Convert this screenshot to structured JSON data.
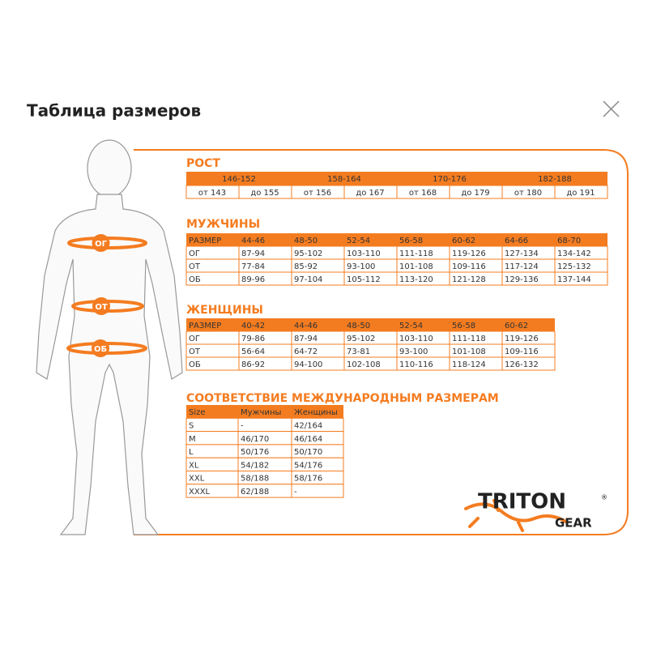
{
  "header": {
    "title": "Таблица размеров"
  },
  "figure": {
    "labels": [
      "ОГ",
      "ОТ",
      "ОБ"
    ]
  },
  "height_table": {
    "title": "РОСТ",
    "groups": [
      "146-152",
      "158-164",
      "170-176",
      "182-188"
    ],
    "cells": [
      "от 143",
      "до 155",
      "от 156",
      "до 167",
      "от 168",
      "до 179",
      "от 180",
      "до 191"
    ]
  },
  "men_table": {
    "title": "МУЖЧИНЫ",
    "header": [
      "РАЗМЕР",
      "44-46",
      "48-50",
      "52-54",
      "56-58",
      "60-62",
      "64-66",
      "68-70"
    ],
    "rows": [
      [
        "ОГ",
        "87-94",
        "95-102",
        "103-110",
        "111-118",
        "119-126",
        "127-134",
        "134-142"
      ],
      [
        "ОТ",
        "77-84",
        "85-92",
        "93-100",
        "101-108",
        "109-116",
        "117-124",
        "125-132"
      ],
      [
        "ОБ",
        "89-96",
        "97-104",
        "105-112",
        "113-120",
        "121-128",
        "129-136",
        "137-144"
      ]
    ]
  },
  "women_table": {
    "title": "ЖЕНЩИНЫ",
    "header": [
      "РАЗМЕР",
      "40-42",
      "44-46",
      "48-50",
      "52-54",
      "56-58",
      "60-62"
    ],
    "rows": [
      [
        "ОГ",
        "79-86",
        "87-94",
        "95-102",
        "103-110",
        "111-118",
        "119-126"
      ],
      [
        "ОТ",
        "56-64",
        "64-72",
        "73-81",
        "93-100",
        "101-108",
        "109-116"
      ],
      [
        "ОБ",
        "86-92",
        "94-100",
        "102-108",
        "110-116",
        "118-124",
        "126-132"
      ]
    ]
  },
  "intl_table": {
    "title": "СООТВЕТСТВИЕ МЕЖДУНАРОДНЫМ РАЗМЕРАМ",
    "header": [
      "Size",
      "Мужчины",
      "Женщины"
    ],
    "rows": [
      [
        "S",
        "-",
        "42/164"
      ],
      [
        "M",
        "46/170",
        "46/164"
      ],
      [
        "L",
        "50/176",
        "50/170"
      ],
      [
        "XL",
        "54/182",
        "54/176"
      ],
      [
        "XXL",
        "58/188",
        "58/176"
      ],
      [
        "XXXL",
        "62/188",
        "-"
      ]
    ]
  },
  "logo": {
    "name": "TRITON",
    "sub": "GEAR",
    "mark": "®"
  }
}
